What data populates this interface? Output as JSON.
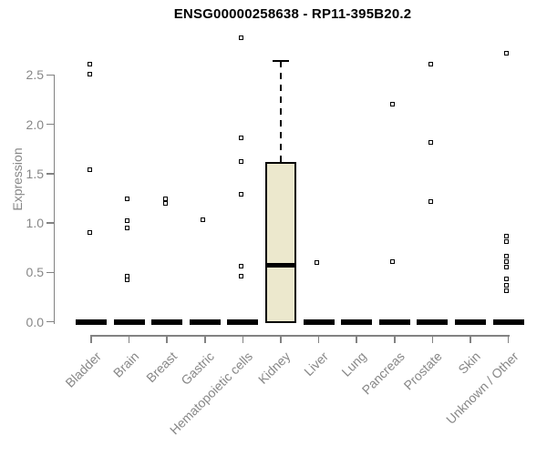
{
  "title": "ENSG00000258638 - RP11-395B20.2",
  "colors": {
    "box_fill": "#ECE8CD",
    "box_line": "#000000",
    "axis_line": "#828282",
    "axis_text": "#878787",
    "title_text": "#000000"
  },
  "chart_data": {
    "type": "boxplot",
    "title": "ENSG00000258638 - RP11-395B20.2",
    "xlabel": "",
    "ylabel": "Expression",
    "ylim": [
      0,
      2.9
    ],
    "yticks": [
      0.0,
      0.5,
      1.0,
      1.5,
      2.0,
      2.5
    ],
    "grid": false,
    "legend": false,
    "categories": [
      "Bladder",
      "Brain",
      "Breast",
      "Gastric",
      "Hematopoietic cells",
      "Kidney",
      "Liver",
      "Lung",
      "Pancreas",
      "Prostate",
      "Skin",
      "Unknown / Other"
    ],
    "boxes": [
      {
        "category": "Bladder",
        "q1": 0,
        "median": 0,
        "q3": 0,
        "whisker_low": 0,
        "whisker_high": 0,
        "outliers": [
          0.9,
          1.54,
          2.51,
          2.61
        ]
      },
      {
        "category": "Brain",
        "q1": 0,
        "median": 0,
        "q3": 0,
        "whisker_low": 0,
        "whisker_high": 0,
        "outliers": [
          0.42,
          0.46,
          0.95,
          1.02,
          1.24
        ]
      },
      {
        "category": "Breast",
        "q1": 0,
        "median": 0,
        "q3": 0,
        "whisker_low": 0,
        "whisker_high": 0,
        "outliers": [
          1.2,
          1.24
        ]
      },
      {
        "category": "Gastric",
        "q1": 0,
        "median": 0,
        "q3": 0,
        "whisker_low": 0,
        "whisker_high": 0,
        "outliers": [
          1.03
        ]
      },
      {
        "category": "Hematopoietic cells",
        "q1": 0,
        "median": 0,
        "q3": 0,
        "whisker_low": 0,
        "whisker_high": 0,
        "outliers": [
          0.46,
          0.56,
          1.29,
          1.62,
          1.86,
          2.88
        ]
      },
      {
        "category": "Kidney",
        "q1": 0,
        "median": 0.57,
        "q3": 1.62,
        "whisker_low": 0,
        "whisker_high": 2.64,
        "outliers": []
      },
      {
        "category": "Liver",
        "q1": 0,
        "median": 0,
        "q3": 0,
        "whisker_low": 0,
        "whisker_high": 0,
        "outliers": [
          0.6
        ]
      },
      {
        "category": "Lung",
        "q1": 0,
        "median": 0,
        "q3": 0,
        "whisker_low": 0,
        "whisker_high": 0,
        "outliers": []
      },
      {
        "category": "Pancreas",
        "q1": 0,
        "median": 0,
        "q3": 0,
        "whisker_low": 0,
        "whisker_high": 0,
        "outliers": [
          0.61,
          2.2
        ]
      },
      {
        "category": "Prostate",
        "q1": 0,
        "median": 0,
        "q3": 0,
        "whisker_low": 0,
        "whisker_high": 0,
        "outliers": [
          1.22,
          1.82,
          2.61
        ]
      },
      {
        "category": "Skin",
        "q1": 0,
        "median": 0,
        "q3": 0,
        "whisker_low": 0,
        "whisker_high": 0,
        "outliers": []
      },
      {
        "category": "Unknown / Other",
        "q1": 0,
        "median": 0,
        "q3": 0,
        "whisker_low": 0,
        "whisker_high": 0,
        "outliers": [
          0.31,
          0.37,
          0.43,
          0.55,
          0.61,
          0.66,
          0.81,
          0.87,
          2.72
        ]
      }
    ]
  }
}
